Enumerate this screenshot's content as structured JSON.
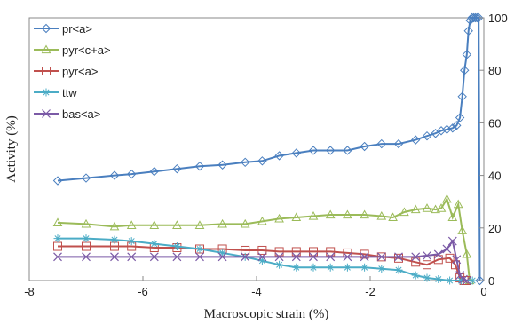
{
  "chart_data": {
    "type": "line",
    "xlabel": "Macroscopic strain (%)",
    "ylabel": "Activity (%)",
    "xlim": [
      -8,
      0
    ],
    "ylim": [
      0,
      100
    ],
    "x_ticks": [
      -8,
      -6,
      -4,
      -2,
      0
    ],
    "y_ticks": [
      0,
      20,
      40,
      60,
      80,
      100
    ],
    "y_axis_side": "right",
    "legend_placement": "top-left",
    "grid": false,
    "series": [
      {
        "name": "pr<a>",
        "color": "#4a7fbf",
        "marker": "diamond",
        "x": [
          -7.5,
          -7.0,
          -6.5,
          -6.2,
          -5.8,
          -5.4,
          -5.0,
          -4.6,
          -4.2,
          -3.9,
          -3.6,
          -3.3,
          -3.0,
          -2.7,
          -2.4,
          -2.1,
          -1.8,
          -1.5,
          -1.2,
          -1.0,
          -0.85,
          -0.75,
          -0.65,
          -0.55,
          -0.48,
          -0.42,
          -0.38,
          -0.34,
          -0.3,
          -0.27,
          -0.24,
          -0.21,
          -0.18,
          -0.15,
          -0.12,
          -0.09,
          -0.07
        ],
        "values": [
          38,
          39,
          40,
          40.5,
          41.5,
          42.5,
          43.5,
          44,
          45,
          45.5,
          47.5,
          48.5,
          49.5,
          49.5,
          49.5,
          51,
          52,
          52,
          53.5,
          55,
          56,
          57,
          57.5,
          58,
          59,
          62,
          70,
          80,
          86,
          95,
          99,
          100,
          100,
          100,
          100,
          100,
          0
        ]
      },
      {
        "name": "pyr<c+a>",
        "color": "#9bbb59",
        "marker": "triangle",
        "x": [
          -7.5,
          -7.0,
          -6.5,
          -6.2,
          -5.8,
          -5.4,
          -5.0,
          -4.6,
          -4.2,
          -3.9,
          -3.6,
          -3.3,
          -3.0,
          -2.7,
          -2.4,
          -2.1,
          -1.8,
          -1.6,
          -1.4,
          -1.2,
          -1.0,
          -0.85,
          -0.75,
          -0.65,
          -0.55,
          -0.45,
          -0.38,
          -0.3,
          -0.25
        ],
        "values": [
          22,
          21.5,
          20.5,
          21,
          21,
          21,
          21,
          21.5,
          21.5,
          22.5,
          23.5,
          24,
          24.5,
          25,
          25,
          25,
          24.5,
          24,
          26,
          27,
          27.5,
          27,
          27.5,
          31,
          24,
          29,
          19,
          10,
          0
        ]
      },
      {
        "name": "pyr<a>",
        "color": "#c0504d",
        "marker": "square",
        "x": [
          -7.5,
          -7.0,
          -6.5,
          -6.2,
          -5.8,
          -5.4,
          -5.0,
          -4.6,
          -4.2,
          -3.9,
          -3.6,
          -3.3,
          -3.0,
          -2.7,
          -2.4,
          -2.1,
          -1.8,
          -1.5,
          -1.2,
          -1.0,
          -0.8,
          -0.6,
          -0.5,
          -0.42,
          -0.35,
          -0.3
        ],
        "values": [
          13,
          13,
          13,
          13,
          12.5,
          12.5,
          12,
          12,
          11.5,
          11.5,
          11,
          11,
          11,
          11,
          10.5,
          10,
          9,
          8.5,
          7,
          6,
          8,
          8.5,
          6,
          1,
          0,
          0
        ]
      },
      {
        "name": "ttw",
        "color": "#4bacc6",
        "marker": "star",
        "x": [
          -7.5,
          -7.0,
          -6.5,
          -6.2,
          -5.8,
          -5.4,
          -5.0,
          -4.6,
          -4.2,
          -3.9,
          -3.6,
          -3.3,
          -3.0,
          -2.7,
          -2.4,
          -2.1,
          -1.8,
          -1.5,
          -1.2,
          -1.0,
          -0.8,
          -0.6,
          -0.4,
          -0.2
        ],
        "values": [
          16,
          16,
          15.5,
          15,
          14,
          13,
          12,
          10.5,
          9,
          7.5,
          6,
          5,
          5,
          5,
          5,
          5,
          4.5,
          4,
          2,
          1,
          0.5,
          0,
          0,
          0
        ]
      },
      {
        "name": "bas<a>",
        "color": "#7b5aa6",
        "marker": "cross",
        "x": [
          -7.5,
          -7.0,
          -6.5,
          -6.2,
          -5.8,
          -5.4,
          -5.0,
          -4.6,
          -4.2,
          -3.9,
          -3.6,
          -3.3,
          -3.0,
          -2.7,
          -2.4,
          -2.1,
          -1.8,
          -1.5,
          -1.2,
          -1.0,
          -0.8,
          -0.65,
          -0.55,
          -0.48,
          -0.42,
          -0.36,
          -0.3
        ],
        "values": [
          9,
          9,
          9,
          9,
          9,
          9,
          9,
          9,
          9,
          9,
          9,
          9,
          9,
          9,
          9,
          9,
          9,
          9,
          9,
          9.5,
          10,
          12,
          15,
          8,
          2,
          0.5,
          0
        ]
      }
    ]
  }
}
